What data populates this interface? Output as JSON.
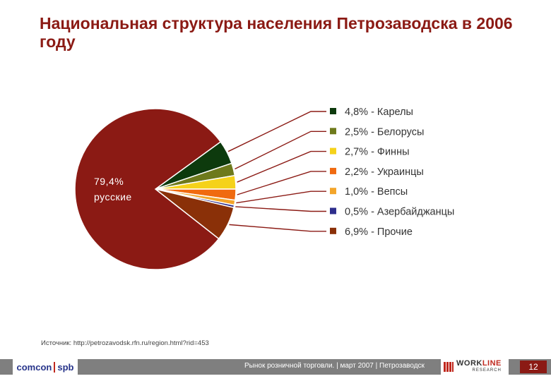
{
  "title": "Национальная структура населения Петрозаводска в 2006 году",
  "source": "Источник: http://petrozavodsk.rfn.ru/region.html?rid=453",
  "footer": {
    "logo_left": [
      "comcon",
      "spb"
    ],
    "text": "Рынок розничной торговли. | март 2007 | Петрозаводск",
    "logo_right_main_pre": "WORK",
    "logo_right_main_accent": "LINE",
    "logo_right_sub": "RESEARCH",
    "page": "12"
  },
  "chart_data": {
    "type": "pie",
    "title": "Национальная структура населения Петрозаводска в 2006 году",
    "series": [
      {
        "name": "русские",
        "value": 79.4,
        "label": "79,4%",
        "color": "#8b1a14"
      },
      {
        "name": "Карелы",
        "value": 4.8,
        "label": "4,8%",
        "color": "#0d3a0d"
      },
      {
        "name": "Белорусы",
        "value": 2.5,
        "label": "2,5%",
        "color": "#6e7a1c"
      },
      {
        "name": "Финны",
        "value": 2.7,
        "label": "2,7%",
        "color": "#f5d21a"
      },
      {
        "name": "Украинцы",
        "value": 2.2,
        "label": "2,2%",
        "color": "#f06a10"
      },
      {
        "name": "Вепсы",
        "value": 1.0,
        "label": "1,0%",
        "color": "#f3a52a"
      },
      {
        "name": "Азербайджанцы",
        "value": 0.5,
        "label": "0,5%",
        "color": "#2e2e8c"
      },
      {
        "name": "Прочие",
        "value": 6.9,
        "label": "6,9%",
        "color": "#8a3008"
      }
    ],
    "legend_placement": "right"
  }
}
